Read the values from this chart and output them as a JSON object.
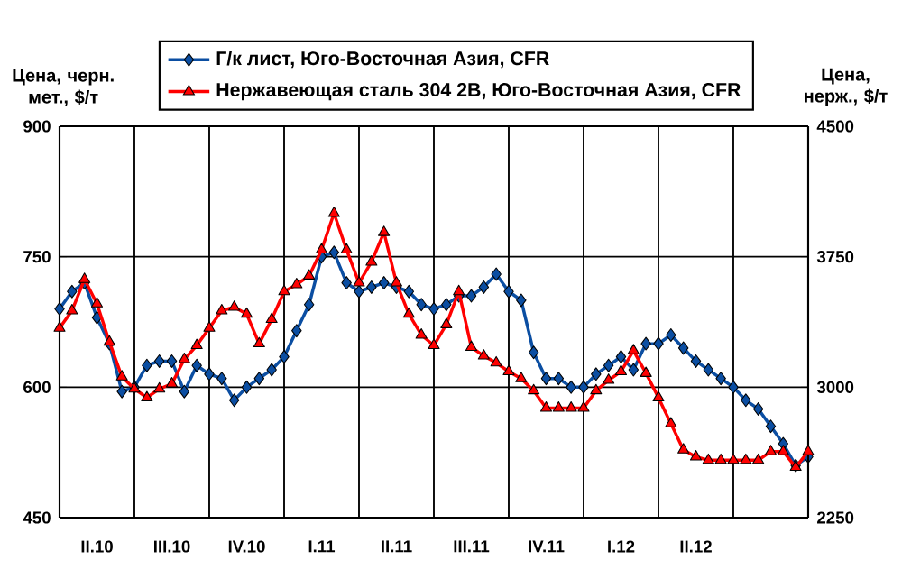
{
  "chart_data": {
    "type": "line",
    "ylabel": "Цена, черн. мет., $/т",
    "y2label": "Цена, нерж., $/т",
    "categories": [
      null,
      null,
      null,
      "II.10",
      null,
      null,
      null,
      null,
      null,
      "III.10",
      null,
      null,
      null,
      null,
      null,
      "IV.10",
      null,
      null,
      null,
      null,
      null,
      "I.11",
      null,
      null,
      null,
      null,
      null,
      "II.11",
      null,
      null,
      null,
      null,
      null,
      "III.11",
      null,
      null,
      null,
      null,
      null,
      "IV.11",
      null,
      null,
      null,
      null,
      null,
      "I.12",
      null,
      null,
      null,
      null,
      null,
      "II.12",
      null,
      null,
      null,
      null,
      null,
      null,
      null,
      null,
      null
    ],
    "ylim": [
      450,
      900
    ],
    "yticks": [
      450,
      600,
      750,
      900
    ],
    "y2lim": [
      2250,
      4500
    ],
    "y2ticks": [
      2250,
      3000,
      3750,
      4500
    ],
    "grid": true,
    "legend": "top",
    "series": [
      {
        "name": "Г/к лист, Юго-Восточная Азия, CFR",
        "color": "#0b4ea2",
        "marker": "diamond",
        "values": [
          690,
          710,
          720,
          680,
          650,
          595,
          600,
          625,
          630,
          630,
          595,
          625,
          615,
          610,
          585,
          600,
          610,
          620,
          635,
          665,
          695,
          750,
          755,
          720,
          710,
          715,
          720,
          715,
          710,
          695,
          690,
          695,
          705,
          705,
          715,
          730,
          710,
          700,
          640,
          610,
          610,
          600,
          600,
          615,
          625,
          635,
          620,
          650,
          650,
          660,
          645,
          630,
          620,
          610,
          600,
          585,
          575,
          555,
          535,
          510,
          520
        ]
      },
      {
        "name": "Нержавеющая сталь 304 2B, Юго-Восточная Азия, CFR",
        "color": "#ff0000",
        "marker": "triangle",
        "axis": "y2",
        "values": [
          3340,
          3440,
          3620,
          3480,
          3260,
          3060,
          2990,
          2940,
          2990,
          3020,
          3160,
          3240,
          3340,
          3440,
          3460,
          3420,
          3250,
          3390,
          3550,
          3590,
          3640,
          3790,
          4000,
          3790,
          3600,
          3720,
          3890,
          3600,
          3420,
          3300,
          3240,
          3360,
          3550,
          3230,
          3180,
          3140,
          3090,
          3050,
          2980,
          2880,
          2880,
          2880,
          2880,
          2980,
          3040,
          3090,
          3210,
          3080,
          2940,
          2790,
          2640,
          2600,
          2580,
          2580,
          2580,
          2580,
          2580,
          2630,
          2630,
          2540,
          2630
        ]
      }
    ]
  }
}
